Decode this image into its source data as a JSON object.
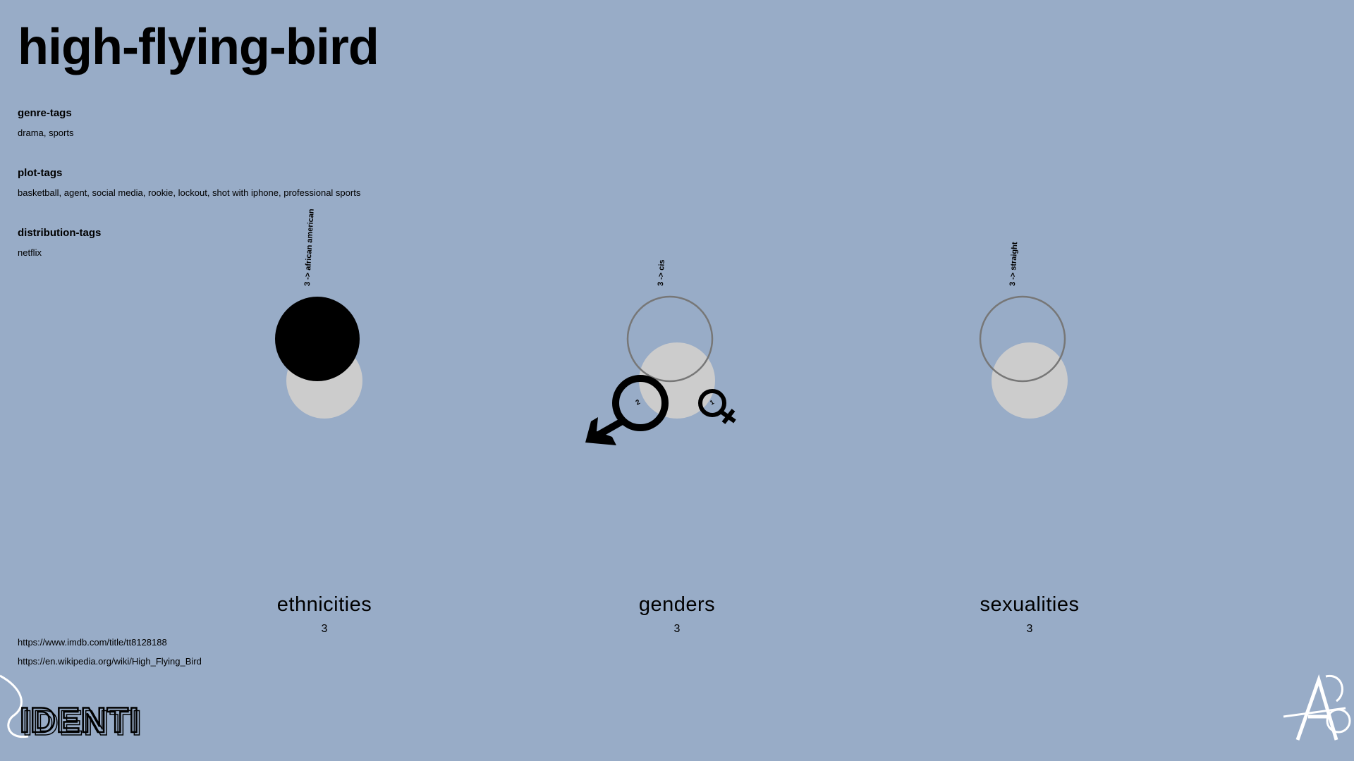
{
  "title": "high-flying-bird",
  "tags": {
    "genre": {
      "heading": "genre-tags",
      "values": "drama, sports"
    },
    "plot": {
      "heading": "plot-tags",
      "values": "basketball, agent, social media, rookie, lockout, shot with iphone, professional sports"
    },
    "distribution": {
      "heading": "distribution-tags",
      "values": "netflix"
    }
  },
  "categories": [
    {
      "label": "ethnicities",
      "count": "3",
      "breakdown": "3 -> african american"
    },
    {
      "label": "genders",
      "count": "3",
      "breakdown": "3 -> cis"
    },
    {
      "label": "sexualities",
      "count": "3",
      "breakdown": "3 -> straight"
    }
  ],
  "gender_symbols": [
    {
      "name": "male",
      "count": "2"
    },
    {
      "name": "female",
      "count": "1"
    }
  ],
  "links": {
    "imdb": "https://www.imdb.com/title/tt8128188",
    "wikipedia": "https://en.wikipedia.org/wiki/High_Flying_Bird"
  },
  "logo_text": "IDENTI",
  "colors": {
    "background": "#98acc7",
    "grey_circle": "#cccccc",
    "outline": "#777777",
    "ink": "#000000"
  }
}
